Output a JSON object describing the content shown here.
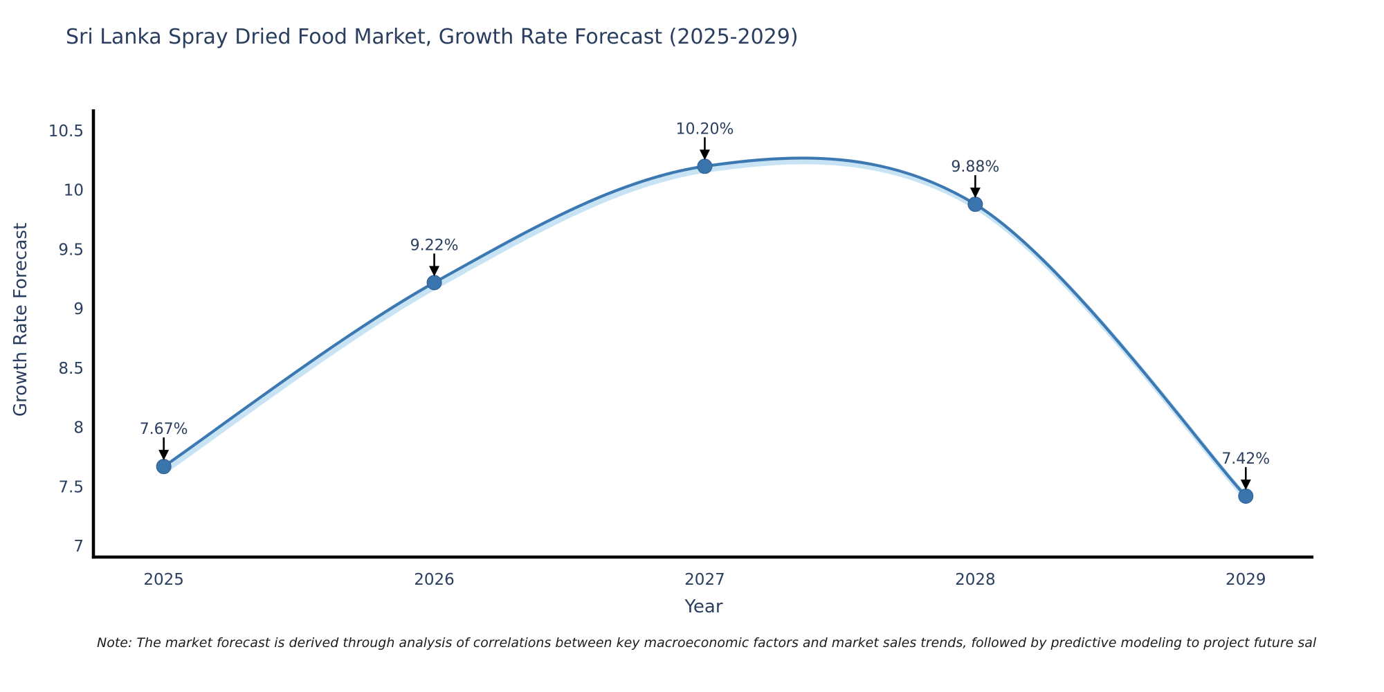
{
  "note": "Note: The market forecast is derived through analysis of correlations between key macroeconomic factors and market sales trends, followed by predictive modeling to project future sal",
  "colors": {
    "title_text": "#2a3f5f",
    "tick_text": "#2a3f5f",
    "line": "#3c79b2",
    "line_glow": "#c8e4f4",
    "marker_fill": "#3a74ac",
    "marker_edge": "#2d5f92",
    "axis_spine": "#000000",
    "arrow": "#000000",
    "background": "#ffffff"
  },
  "chart_data": {
    "type": "line",
    "title": "Sri Lanka Spray Dried Food Market, Growth Rate Forecast (2025-2029)",
    "xlabel": "Year",
    "ylabel": "Growth Rate Forecast",
    "x": [
      2025,
      2026,
      2027,
      2028,
      2029
    ],
    "series": [
      {
        "name": "Growth Rate Forecast",
        "values": [
          7.67,
          9.22,
          10.2,
          9.88,
          7.42
        ]
      }
    ],
    "point_labels": [
      "7.67%",
      "9.22%",
      "10.20%",
      "9.88%",
      "7.42%"
    ],
    "xtick_labels": [
      "2025",
      "2026",
      "2027",
      "2028",
      "2029"
    ],
    "ytick_values": [
      7,
      7.5,
      8,
      8.5,
      9,
      9.5,
      10,
      10.5
    ],
    "ytick_labels": [
      "7",
      "7.5",
      "8",
      "8.5",
      "9",
      "9.5",
      "10",
      "10.5"
    ],
    "xlim": [
      2024.74,
      2029.25
    ],
    "ylim": [
      6.907,
      10.68
    ],
    "grid": false,
    "legend_position": "none",
    "line_shape": "spline",
    "marker_style": "circle",
    "annotation_arrows": true
  }
}
